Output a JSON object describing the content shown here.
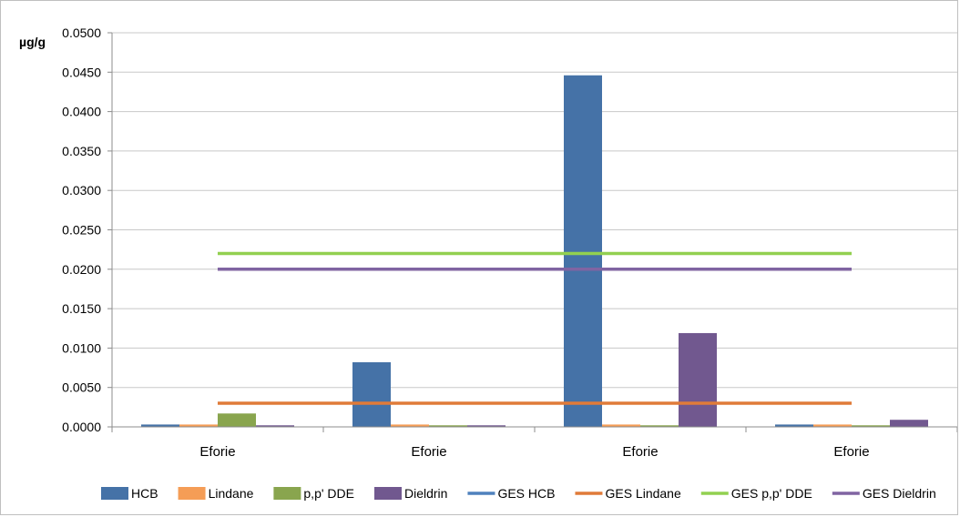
{
  "chart_data": {
    "type": "bar",
    "ylabel": "µg/g",
    "ylim": [
      0,
      0.05
    ],
    "yticks": [
      "0.0000",
      "0.0050",
      "0.0100",
      "0.0150",
      "0.0200",
      "0.0250",
      "0.0300",
      "0.0350",
      "0.0400",
      "0.0450",
      "0.0500"
    ],
    "categories": [
      "Eforie",
      "Eforie",
      "Eforie",
      "Eforie"
    ],
    "series": [
      {
        "name": "HCB",
        "kind": "bar",
        "color": "#4572a7",
        "values": [
          0.0003,
          0.0082,
          0.0446,
          0.0003
        ]
      },
      {
        "name": "Lindane",
        "kind": "bar",
        "color": "#f59d56",
        "values": [
          0.0003,
          0.0003,
          0.0003,
          0.0003
        ]
      },
      {
        "name": "p,p' DDE",
        "kind": "bar",
        "color": "#89a54e",
        "values": [
          0.0017,
          0.0002,
          0.0002,
          0.0002
        ]
      },
      {
        "name": "Dieldrin",
        "kind": "bar",
        "color": "#71588f",
        "values": [
          0.0002,
          0.0002,
          0.0119,
          0.0009
        ]
      },
      {
        "name": "GES HCB",
        "kind": "line",
        "color": "#4f81bd",
        "values": [
          0.02,
          0.02,
          0.02,
          0.02
        ]
      },
      {
        "name": "GES Lindane",
        "kind": "line",
        "color": "#e07b39",
        "values": [
          0.003,
          0.003,
          0.003,
          0.003
        ]
      },
      {
        "name": "GES p,p' DDE",
        "kind": "line",
        "color": "#92d050",
        "values": [
          0.022,
          0.022,
          0.022,
          0.022
        ]
      },
      {
        "name": "GES Dieldrin",
        "kind": "line",
        "color": "#8064a2",
        "values": [
          0.02,
          0.02,
          0.02,
          0.02
        ]
      }
    ],
    "grid": true,
    "legend": "bottom"
  }
}
